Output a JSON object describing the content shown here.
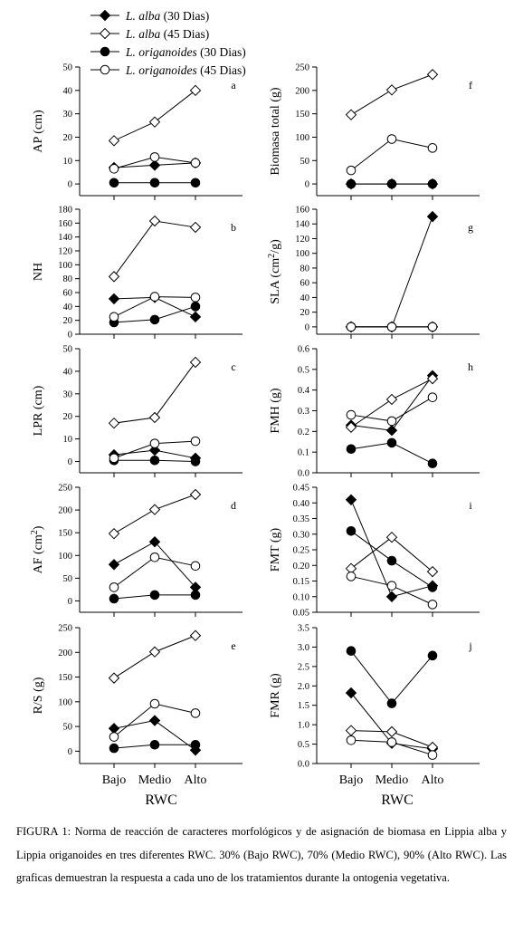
{
  "legend": [
    {
      "species": "L. alba",
      "label": "(30 Dias)",
      "marker": "diamond",
      "filled": true
    },
    {
      "species": "L. alba",
      "label": "(45 Dias)",
      "marker": "diamond",
      "filled": false
    },
    {
      "species": "L. origanoides",
      "label": "(30 Dias)",
      "marker": "circle",
      "filled": true
    },
    {
      "species": "L. origanoides",
      "label": "(45 Dias)",
      "marker": "circle",
      "filled": false
    }
  ],
  "xlabel": "RWC",
  "caption": "FIGURA 1: Norma de reacción de caracteres morfológicos y de asignación de biomasa en Lippia alba y Lippia origanoides en tres diferentes RWC. 30% (Bajo RWC), 70% (Medio RWC), 90% (Alto RWC). Las graficas demuestran la respuesta a cada uno de los tratamientos durante la ontogenia vegetativa.",
  "chart_data": [
    {
      "type": "line",
      "panel": "a",
      "ylabel": "AP (cm)",
      "categories": [
        "Bajo",
        "Medio",
        "Alto"
      ],
      "ylim": [
        -5,
        50
      ],
      "yticks": [
        0,
        10,
        20,
        30,
        40,
        50
      ],
      "tick_decimals": 0,
      "series": [
        {
          "name": "L. alba (30 Dias)",
          "values": [
            7,
            8,
            9
          ]
        },
        {
          "name": "L. alba (45 Dias)",
          "values": [
            18.5,
            26.5,
            40
          ]
        },
        {
          "name": "L. origanoides (30 Dias)",
          "values": [
            0.5,
            0.5,
            0.5
          ]
        },
        {
          "name": "L. origanoides (45 Dias)",
          "values": [
            6.5,
            11.5,
            9
          ]
        }
      ]
    },
    {
      "type": "line",
      "panel": "b",
      "ylabel": "NH",
      "categories": [
        "Bajo",
        "Medio",
        "Alto"
      ],
      "ylim": [
        0,
        180
      ],
      "yticks": [
        0,
        20,
        40,
        60,
        80,
        100,
        120,
        140,
        160,
        180
      ],
      "tick_decimals": 0,
      "series": [
        {
          "name": "L. alba (30 Dias)",
          "values": [
            51,
            53,
            25
          ]
        },
        {
          "name": "L. alba (45 Dias)",
          "values": [
            83,
            163,
            154
          ]
        },
        {
          "name": "L. origanoides (30 Dias)",
          "values": [
            17,
            21,
            40
          ]
        },
        {
          "name": "L. origanoides (45 Dias)",
          "values": [
            25,
            54,
            53
          ]
        }
      ]
    },
    {
      "type": "line",
      "panel": "c",
      "ylabel": "LPR (cm)",
      "categories": [
        "Bajo",
        "Medio",
        "Alto"
      ],
      "ylim": [
        -5,
        50
      ],
      "yticks": [
        0,
        10,
        20,
        30,
        40,
        50
      ],
      "tick_decimals": 0,
      "series": [
        {
          "name": "L. alba (30 Dias)",
          "values": [
            3,
            5,
            1.5
          ]
        },
        {
          "name": "L. alba (45 Dias)",
          "values": [
            17,
            19.5,
            44
          ]
        },
        {
          "name": "L. origanoides (30 Dias)",
          "values": [
            0.5,
            0.5,
            0
          ]
        },
        {
          "name": "L. origanoides (45 Dias)",
          "values": [
            1.5,
            8,
            9
          ]
        }
      ]
    },
    {
      "type": "line",
      "panel": "d",
      "ylabel": "AF (cm2)",
      "categories": [
        "Bajo",
        "Medio",
        "Alto"
      ],
      "ylim": [
        -25,
        250
      ],
      "yticks": [
        0,
        50,
        100,
        150,
        200,
        250
      ],
      "tick_decimals": 0,
      "series": [
        {
          "name": "L. alba (30 Dias)",
          "values": [
            80,
            130,
            30
          ]
        },
        {
          "name": "L. alba (45 Dias)",
          "values": [
            148,
            201,
            234
          ]
        },
        {
          "name": "L. origanoides (30 Dias)",
          "values": [
            5,
            13,
            13
          ]
        },
        {
          "name": "L. origanoides (45 Dias)",
          "values": [
            30,
            96,
            77
          ]
        }
      ]
    },
    {
      "type": "line",
      "panel": "e",
      "ylabel": "R/S (g)",
      "categories": [
        "Bajo",
        "Medio",
        "Alto"
      ],
      "ylim": [
        -25,
        250
      ],
      "yticks": [
        0,
        50,
        100,
        150,
        200,
        250
      ],
      "tick_decimals": 0,
      "series": [
        {
          "name": "L. alba (30 Dias)",
          "values": [
            46,
            62,
            2
          ]
        },
        {
          "name": "L. alba (45 Dias)",
          "values": [
            148,
            201,
            234
          ]
        },
        {
          "name": "L. origanoides (30 Dias)",
          "values": [
            6,
            13,
            13
          ]
        },
        {
          "name": "L. origanoides (45 Dias)",
          "values": [
            29,
            96,
            77
          ]
        }
      ]
    },
    {
      "type": "line",
      "panel": "f",
      "ylabel": "Biomasa total (g)",
      "categories": [
        "Bajo",
        "Medio",
        "Alto"
      ],
      "ylim": [
        -25,
        250
      ],
      "yticks": [
        0,
        50,
        100,
        150,
        200,
        250
      ],
      "tick_decimals": 0,
      "series": [
        {
          "name": "L. alba (30 Dias)",
          "values": [
            0,
            0,
            0
          ]
        },
        {
          "name": "L. alba (45 Dias)",
          "values": [
            148,
            201,
            234
          ]
        },
        {
          "name": "L. origanoides (30 Dias)",
          "values": [
            0,
            0,
            0
          ]
        },
        {
          "name": "L. origanoides (45 Dias)",
          "values": [
            29,
            96,
            77
          ]
        }
      ]
    },
    {
      "type": "line",
      "panel": "g",
      "ylabel": "SLA (cm2/g)",
      "categories": [
        "Bajo",
        "Medio",
        "Alto"
      ],
      "ylim": [
        -10,
        160
      ],
      "yticks": [
        0,
        20,
        40,
        60,
        80,
        100,
        120,
        140,
        160
      ],
      "tick_decimals": 0,
      "series": [
        {
          "name": "L. alba (30 Dias)",
          "values": [
            0,
            0,
            150
          ]
        },
        {
          "name": "L. alba (45 Dias)",
          "values": [
            0,
            0,
            0
          ]
        },
        {
          "name": "L. origanoides (30 Dias)",
          "values": [
            0,
            0,
            0
          ]
        },
        {
          "name": "L. origanoides (45 Dias)",
          "values": [
            0,
            0,
            0
          ]
        }
      ]
    },
    {
      "type": "line",
      "panel": "h",
      "ylabel": "FMH (g)",
      "categories": [
        "Bajo",
        "Medio",
        "Alto"
      ],
      "ylim": [
        0,
        0.6
      ],
      "yticks": [
        0.0,
        0.1,
        0.2,
        0.3,
        0.4,
        0.5,
        0.6
      ],
      "tick_decimals": 1,
      "series": [
        {
          "name": "L. alba (30 Dias)",
          "values": [
            0.23,
            0.205,
            0.47
          ]
        },
        {
          "name": "L. alba (45 Dias)",
          "values": [
            0.22,
            0.355,
            0.455
          ]
        },
        {
          "name": "L. origanoides (30 Dias)",
          "values": [
            0.115,
            0.145,
            0.045
          ]
        },
        {
          "name": "L. origanoides (45 Dias)",
          "values": [
            0.28,
            0.25,
            0.365
          ]
        }
      ]
    },
    {
      "type": "line",
      "panel": "i",
      "ylabel": "FMT (g)",
      "categories": [
        "Bajo",
        "Medio",
        "Alto"
      ],
      "ylim": [
        0.05,
        0.45
      ],
      "yticks": [
        0.05,
        0.1,
        0.15,
        0.2,
        0.25,
        0.3,
        0.35,
        0.4,
        0.45
      ],
      "tick_decimals": 2,
      "series": [
        {
          "name": "L. alba (30 Dias)",
          "values": [
            0.41,
            0.1,
            0.135
          ]
        },
        {
          "name": "L. alba (45 Dias)",
          "values": [
            0.19,
            0.29,
            0.18
          ]
        },
        {
          "name": "L. origanoides (30 Dias)",
          "values": [
            0.31,
            0.215,
            0.13
          ]
        },
        {
          "name": "L. origanoides (45 Dias)",
          "values": [
            0.165,
            0.135,
            0.075
          ]
        }
      ]
    },
    {
      "type": "line",
      "panel": "j",
      "ylabel": "FMR (g)",
      "categories": [
        "Bajo",
        "Medio",
        "Alto"
      ],
      "ylim": [
        0,
        3.5
      ],
      "yticks": [
        0.0,
        0.5,
        1.0,
        1.5,
        2.0,
        2.5,
        3.0,
        3.5
      ],
      "tick_decimals": 1,
      "series": [
        {
          "name": "L. alba (30 Dias)",
          "values": [
            1.82,
            0.52,
            0.38
          ]
        },
        {
          "name": "L. alba (45 Dias)",
          "values": [
            0.85,
            0.82,
            0.42
          ]
        },
        {
          "name": "L. origanoides (30 Dias)",
          "values": [
            2.9,
            1.55,
            2.78
          ]
        },
        {
          "name": "L. origanoides (45 Dias)",
          "values": [
            0.6,
            0.55,
            0.22
          ]
        }
      ]
    }
  ]
}
